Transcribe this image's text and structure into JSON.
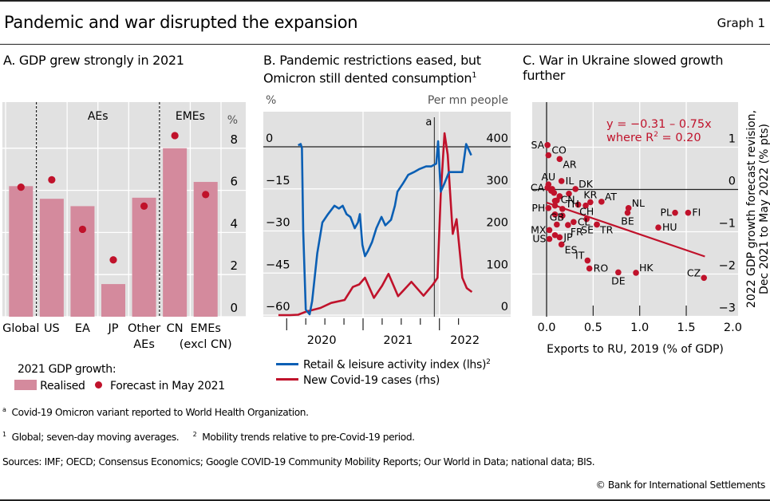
{
  "header": {
    "title": "Pandemic and war disrupted the expansion",
    "graph_number": "Graph 1"
  },
  "panels": {
    "a": {
      "title": "A. GDP grew strongly in 2021",
      "unit": "%",
      "group_labels": [
        "AEs",
        "EMEs"
      ],
      "legend_title": "2021 GDP growth:",
      "legend_realised": "Realised",
      "legend_forecast": "Forecast in May 2021"
    },
    "b": {
      "title_line1": "B. Pandemic restrictions eased, but",
      "title_line2": "Omicron still dented consumption",
      "title_sup": "1",
      "left_unit": "%",
      "right_unit": "Per mn people",
      "marker_label": "a",
      "legend_blue": "Retail & leisure activity index (lhs)",
      "legend_blue_sup": "2",
      "legend_red": "New Covid-19 cases (rhs)"
    },
    "c": {
      "title_line1": "C. War in Ukraine slowed growth",
      "title_line2": "further",
      "equation_line1": "y = −0.31 – 0.75x",
      "equation_line2a": "where R",
      "equation_line2sup": "2",
      "equation_line2b": " = 0.20",
      "xlabel": "Exports to RU, 2019 (% of GDP)",
      "ylabel_line1": "2022 GDP growth forecast revision,",
      "ylabel_line2": "Dec 2021 to May 2022 (% pts)"
    }
  },
  "footnotes": {
    "a_mark": "a",
    "a_text": "Covid-19 Omicron variant reported to World Health Organization.",
    "n1_mark": "1",
    "n1_text": "Global; seven-day moving averages.",
    "n2_mark": "2",
    "n2_text": "Mobility trends relative to pre-Covid-19 period.",
    "sources": "Sources: IMF; OECD; Consensus Economics; Google COVID-19 Community Mobility Reports; Our World in Data; national data; BIS.",
    "copyright": "© Bank for International Settlements"
  },
  "colors": {
    "bar": "#d48a9d",
    "dot": "#c0122b",
    "blue": "#0b5fb4",
    "red": "#c0122b",
    "plotbg": "#e1e1e1",
    "grid": "#ffffff"
  },
  "chart_data": [
    {
      "type": "bar",
      "title": "A. GDP grew strongly in 2021",
      "ylabel": "%",
      "ylim": [
        0,
        9
      ],
      "yticks": [
        0,
        2,
        4,
        6,
        8
      ],
      "categories": [
        "Global",
        "US",
        "EA",
        "JP",
        "Other AEs",
        "CN",
        "EMEs (excl CN)"
      ],
      "category_lines": [
        [
          "Global"
        ],
        [
          "US"
        ],
        [
          "EA"
        ],
        [
          "JP"
        ],
        [
          "Other",
          "AEs"
        ],
        [
          "CN"
        ],
        [
          "EMEs",
          "(excl CN)"
        ]
      ],
      "series": [
        {
          "name": "Realised",
          "type": "bar",
          "values": [
            6.2,
            5.6,
            5.25,
            1.55,
            5.65,
            8.0,
            6.4
          ]
        },
        {
          "name": "Forecast in May 2021",
          "type": "scatter",
          "values": [
            6.15,
            6.5,
            4.15,
            2.7,
            5.25,
            8.6,
            5.8
          ]
        }
      ],
      "groups": [
        {
          "label": "AEs",
          "from": "US",
          "to": "Other AEs"
        },
        {
          "label": "EMEs",
          "from": "CN",
          "to": "EMEs (excl CN)"
        }
      ],
      "legend": "bottom-left"
    },
    {
      "type": "line",
      "title": "B. Pandemic restrictions eased, but Omicron still dented consumption",
      "x_unit": "months since Jan 2020",
      "xlim": [
        -1.5,
        29.5
      ],
      "x_major_ticks": [
        0,
        12,
        24
      ],
      "x_minor_ticks": [
        3,
        6,
        9,
        15,
        18,
        21,
        27
      ],
      "xtick_labels": [
        {
          "label": "2020",
          "at": 5.5
        },
        {
          "label": "2021",
          "at": 17.5
        },
        {
          "label": "2022",
          "at": 28
        }
      ],
      "y_left": {
        "label": "%",
        "lim": [
          -60,
          0
        ],
        "ticks": [
          0,
          -15,
          -30,
          -45,
          -60
        ]
      },
      "y_right": {
        "label": "Per mn people",
        "lim": [
          0,
          400
        ],
        "ticks": [
          400,
          300,
          200,
          100,
          0
        ]
      },
      "annotations": [
        {
          "label": "a",
          "x": 23.2,
          "note": "Covid-19 Omicron variant reported to WHO"
        }
      ],
      "series": [
        {
          "name": "Retail & leisure activity index (lhs)",
          "axis": "left",
          "x": [
            1.8,
            2.2,
            2.4,
            2.6,
            3.0,
            3.6,
            4.0,
            4.8,
            5.6,
            6.5,
            7.5,
            8.2,
            8.8,
            9.4,
            10.0,
            10.7,
            11.2,
            11.5,
            11.9,
            12.3,
            12.8,
            13.4,
            14.1,
            14.9,
            15.5,
            16.4,
            17.0,
            17.4,
            18.3,
            19.1,
            20.0,
            20.8,
            21.9,
            22.7,
            23.5,
            23.8,
            24.2,
            24.8,
            25.5,
            26.7,
            27.6,
            28.2,
            29.0
          ],
          "y": [
            0.5,
            1,
            -0.5,
            -30,
            -58,
            -61,
            -55,
            -38,
            -27,
            -24,
            -21,
            -22,
            -21,
            -24,
            -25,
            -29,
            -27,
            -24,
            -35,
            -39,
            -37,
            -34,
            -29,
            -25,
            -28,
            -26,
            -21,
            -16,
            -13,
            -10,
            -9,
            -8,
            -7,
            -7,
            -6,
            2,
            -16,
            -13,
            -9,
            -9,
            -9,
            1,
            -3
          ]
        },
        {
          "name": "New Covid-19 cases (rhs)",
          "axis": "right",
          "x": [
            -1.3,
            0.5,
            1.8,
            3.0,
            5.3,
            7.0,
            9.1,
            10.4,
            11.4,
            12.3,
            13.7,
            15.0,
            16.0,
            17.5,
            19.6,
            21.5,
            23.0,
            23.7,
            24.2,
            24.8,
            25.3,
            26.1,
            26.7,
            27.6,
            28.3,
            29.1
          ],
          "y": [
            0,
            0,
            1,
            8,
            17,
            29,
            36,
            67,
            73,
            89,
            41,
            70,
            98,
            45,
            79,
            46,
            73,
            89,
            285,
            432,
            381,
            193,
            228,
            89,
            64,
            55
          ]
        }
      ],
      "legend": "bottom"
    },
    {
      "type": "scatter",
      "title": "C. War in Ukraine slowed growth further",
      "xlabel": "Exports to RU, 2019 (% of GDP)",
      "ylabel": "2022 GDP growth forecast revision, Dec 2021 to May 2022 (% pts)",
      "xlim": [
        -0.15,
        2.0
      ],
      "ylim": [
        -3,
        1.6
      ],
      "xticks": [
        0.0,
        0.5,
        1.0,
        1.5,
        2.0
      ],
      "yticks": [
        1,
        0,
        -1,
        -2,
        -3
      ],
      "regression": {
        "intercept": -0.31,
        "slope": -0.75,
        "r2": 0.2,
        "x_range": [
          0,
          1.7
        ]
      },
      "points": [
        {
          "label": "SA",
          "x": 0.01,
          "y": 1.05,
          "pos": "left"
        },
        {
          "label": "CO",
          "x": 0.02,
          "y": 0.81,
          "pos": "right-up"
        },
        {
          "label": "AR",
          "x": 0.14,
          "y": 0.72,
          "pos": "right-down"
        },
        {
          "label": "IL",
          "x": 0.16,
          "y": 0.2,
          "pos": "right"
        },
        {
          "label": "AU",
          "x": 0.02,
          "y": 0.12,
          "pos": "up"
        },
        {
          "label": "CA",
          "x": 0.01,
          "y": 0.04,
          "pos": "left"
        },
        {
          "label": "DK",
          "x": 0.31,
          "y": 0.01,
          "pos": "right-up"
        },
        {
          "label": "",
          "x": 0.06,
          "y": 0.01
        },
        {
          "label": "",
          "x": 0.05,
          "y": -0.03
        },
        {
          "label": "",
          "x": 0.08,
          "y": -0.08
        },
        {
          "label": "",
          "x": 0.24,
          "y": -0.1
        },
        {
          "label": "",
          "x": 0.14,
          "y": -0.16
        },
        {
          "label": "",
          "x": 0.11,
          "y": -0.26
        },
        {
          "label": "",
          "x": 0.09,
          "y": -0.27
        },
        {
          "label": "CN",
          "x": 0.34,
          "y": -0.36,
          "pos": "left-up"
        },
        {
          "label": "KR",
          "x": 0.47,
          "y": -0.3,
          "pos": "up"
        },
        {
          "label": "",
          "x": 0.42,
          "y": -0.38
        },
        {
          "label": "AT",
          "x": 0.59,
          "y": -0.29,
          "pos": "right-up"
        },
        {
          "label": "TH",
          "x": 0.17,
          "y": -0.46,
          "pos": "right-up"
        },
        {
          "label": "",
          "x": 0.09,
          "y": -0.38
        },
        {
          "label": "PH",
          "x": 0.02,
          "y": -0.44,
          "pos": "left"
        },
        {
          "label": "CH",
          "x": 0.43,
          "y": -0.7,
          "pos": "up"
        },
        {
          "label": "NL",
          "x": 0.88,
          "y": -0.44,
          "pos": "right-up"
        },
        {
          "label": "BE",
          "x": 0.87,
          "y": -0.55,
          "pos": "down"
        },
        {
          "label": "PL",
          "x": 1.38,
          "y": -0.55,
          "pos": "left"
        },
        {
          "label": "FI",
          "x": 1.52,
          "y": -0.55,
          "pos": "right"
        },
        {
          "label": "",
          "x": 0.09,
          "y": -0.59
        },
        {
          "label": "",
          "x": 0.17,
          "y": -0.62
        },
        {
          "label": "GB",
          "x": 0.11,
          "y": -0.83,
          "pos": "up"
        },
        {
          "label": "CL",
          "x": 0.29,
          "y": -0.77,
          "pos": "right"
        },
        {
          "label": "FR",
          "x": 0.23,
          "y": -0.84,
          "pos": "down-right"
        },
        {
          "label": "SE",
          "x": 0.54,
          "y": -0.83,
          "pos": "left-down"
        },
        {
          "label": "TR",
          "x": 0.54,
          "y": -0.83,
          "pos": "right-down"
        },
        {
          "label": "HU",
          "x": 1.2,
          "y": -0.9,
          "pos": "right"
        },
        {
          "label": "MX",
          "x": 0.03,
          "y": -0.96,
          "pos": "left"
        },
        {
          "label": "US",
          "x": 0.03,
          "y": -1.17,
          "pos": "left"
        },
        {
          "label": "",
          "x": 0.09,
          "y": -1.08
        },
        {
          "label": "JP",
          "x": 0.14,
          "y": -1.13,
          "pos": "right"
        },
        {
          "label": "ES",
          "x": 0.16,
          "y": -1.3,
          "pos": "right-down"
        },
        {
          "label": "IT",
          "x": 0.44,
          "y": -1.68,
          "pos": "left-up"
        },
        {
          "label": "RO",
          "x": 0.46,
          "y": -1.87,
          "pos": "right"
        },
        {
          "label": "DE",
          "x": 0.77,
          "y": -1.96,
          "pos": "down"
        },
        {
          "label": "HK",
          "x": 0.96,
          "y": -1.97,
          "pos": "right-up"
        },
        {
          "label": "CZ",
          "x": 1.69,
          "y": -2.09,
          "pos": "left-up"
        }
      ]
    }
  ]
}
